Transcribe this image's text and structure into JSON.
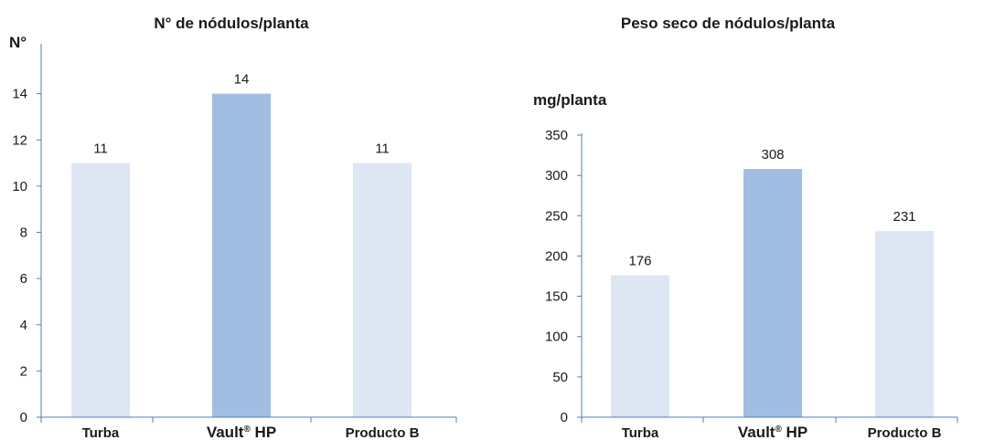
{
  "chart_data": [
    {
      "type": "bar",
      "title": "N° de nódulos/planta",
      "ylabel": "N°",
      "categories": [
        "Turba",
        "Vault® HP",
        "Producto B"
      ],
      "values": [
        11,
        14,
        11
      ],
      "data_labels": [
        "11",
        "14",
        "11"
      ],
      "ylim": [
        0,
        16
      ],
      "yticks": [
        0,
        2,
        4,
        6,
        8,
        10,
        12,
        14
      ],
      "grid": false,
      "bar_colors": [
        "#dde6f3",
        "#a2bde2",
        "#dde6f3"
      ]
    },
    {
      "type": "bar",
      "title": "Peso seco de nódulos/planta",
      "ylabel": "mg/planta",
      "categories": [
        "Turba",
        "Vault® HP",
        "Producto B"
      ],
      "values": [
        176,
        308,
        231
      ],
      "data_labels": [
        "176",
        "308",
        "231"
      ],
      "ylim": [
        0,
        350
      ],
      "yticks": [
        0,
        50,
        100,
        150,
        200,
        250,
        300,
        350
      ],
      "grid": false,
      "bar_colors": [
        "#dde6f3",
        "#a2bde2",
        "#dde6f3"
      ]
    }
  ],
  "colors": {
    "axis": "#4a82c3",
    "bar_light": "#dde6f3",
    "bar_highlight": "#a2bde2",
    "text": "#1a1a1a"
  }
}
